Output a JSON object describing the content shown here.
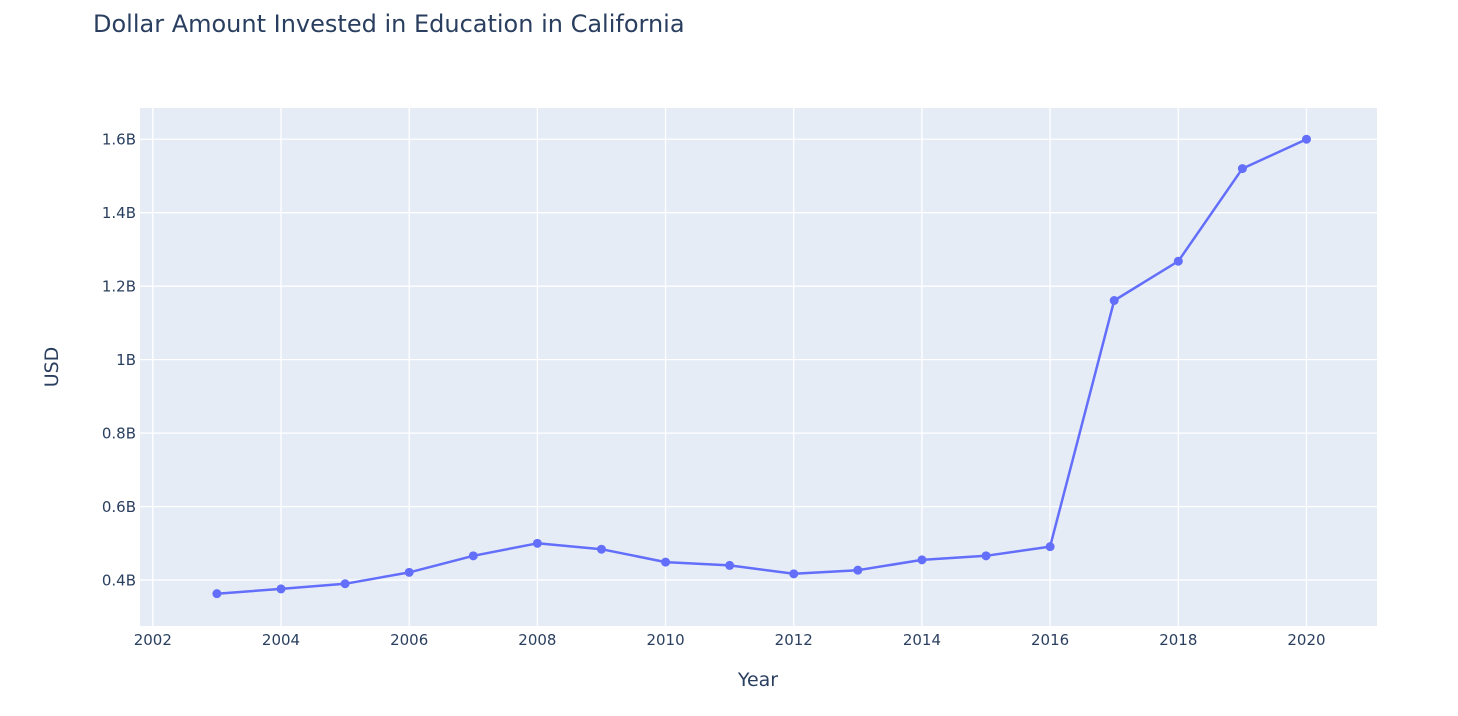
{
  "chart_data": {
    "type": "line",
    "title": "Dollar Amount Invested in Education in California",
    "xlabel": "Year",
    "ylabel": "USD",
    "xlim": [
      2001.8,
      2021.1
    ],
    "ylim": [
      0.275,
      1.685
    ],
    "x_ticks": [
      2002,
      2004,
      2006,
      2008,
      2010,
      2012,
      2014,
      2016,
      2018,
      2020
    ],
    "x_tick_labels": [
      "2002",
      "2004",
      "2006",
      "2008",
      "2010",
      "2012",
      "2014",
      "2016",
      "2018",
      "2020"
    ],
    "y_ticks": [
      0.4,
      0.6,
      0.8,
      1.0,
      1.2,
      1.4,
      1.6
    ],
    "y_tick_labels": [
      "0.4B",
      "0.6B",
      "0.8B",
      "1B",
      "1.2B",
      "1.4B",
      "1.6B"
    ],
    "grid": true,
    "series": [
      {
        "color": "#636efa",
        "x": [
          2003,
          2004,
          2005,
          2006,
          2007,
          2008,
          2009,
          2010,
          2011,
          2012,
          2013,
          2014,
          2015,
          2016,
          2017,
          2018,
          2019,
          2020
        ],
        "y": [
          0.363,
          0.376,
          0.39,
          0.421,
          0.466,
          0.5,
          0.484,
          0.449,
          0.44,
          0.417,
          0.427,
          0.455,
          0.466,
          0.491,
          1.161,
          1.268,
          1.52,
          1.6
        ]
      }
    ]
  },
  "colors": {
    "plot_background": "#e5ecf6",
    "grid": "#ffffff",
    "text": "#2a3f5f",
    "series": "#636efa"
  }
}
